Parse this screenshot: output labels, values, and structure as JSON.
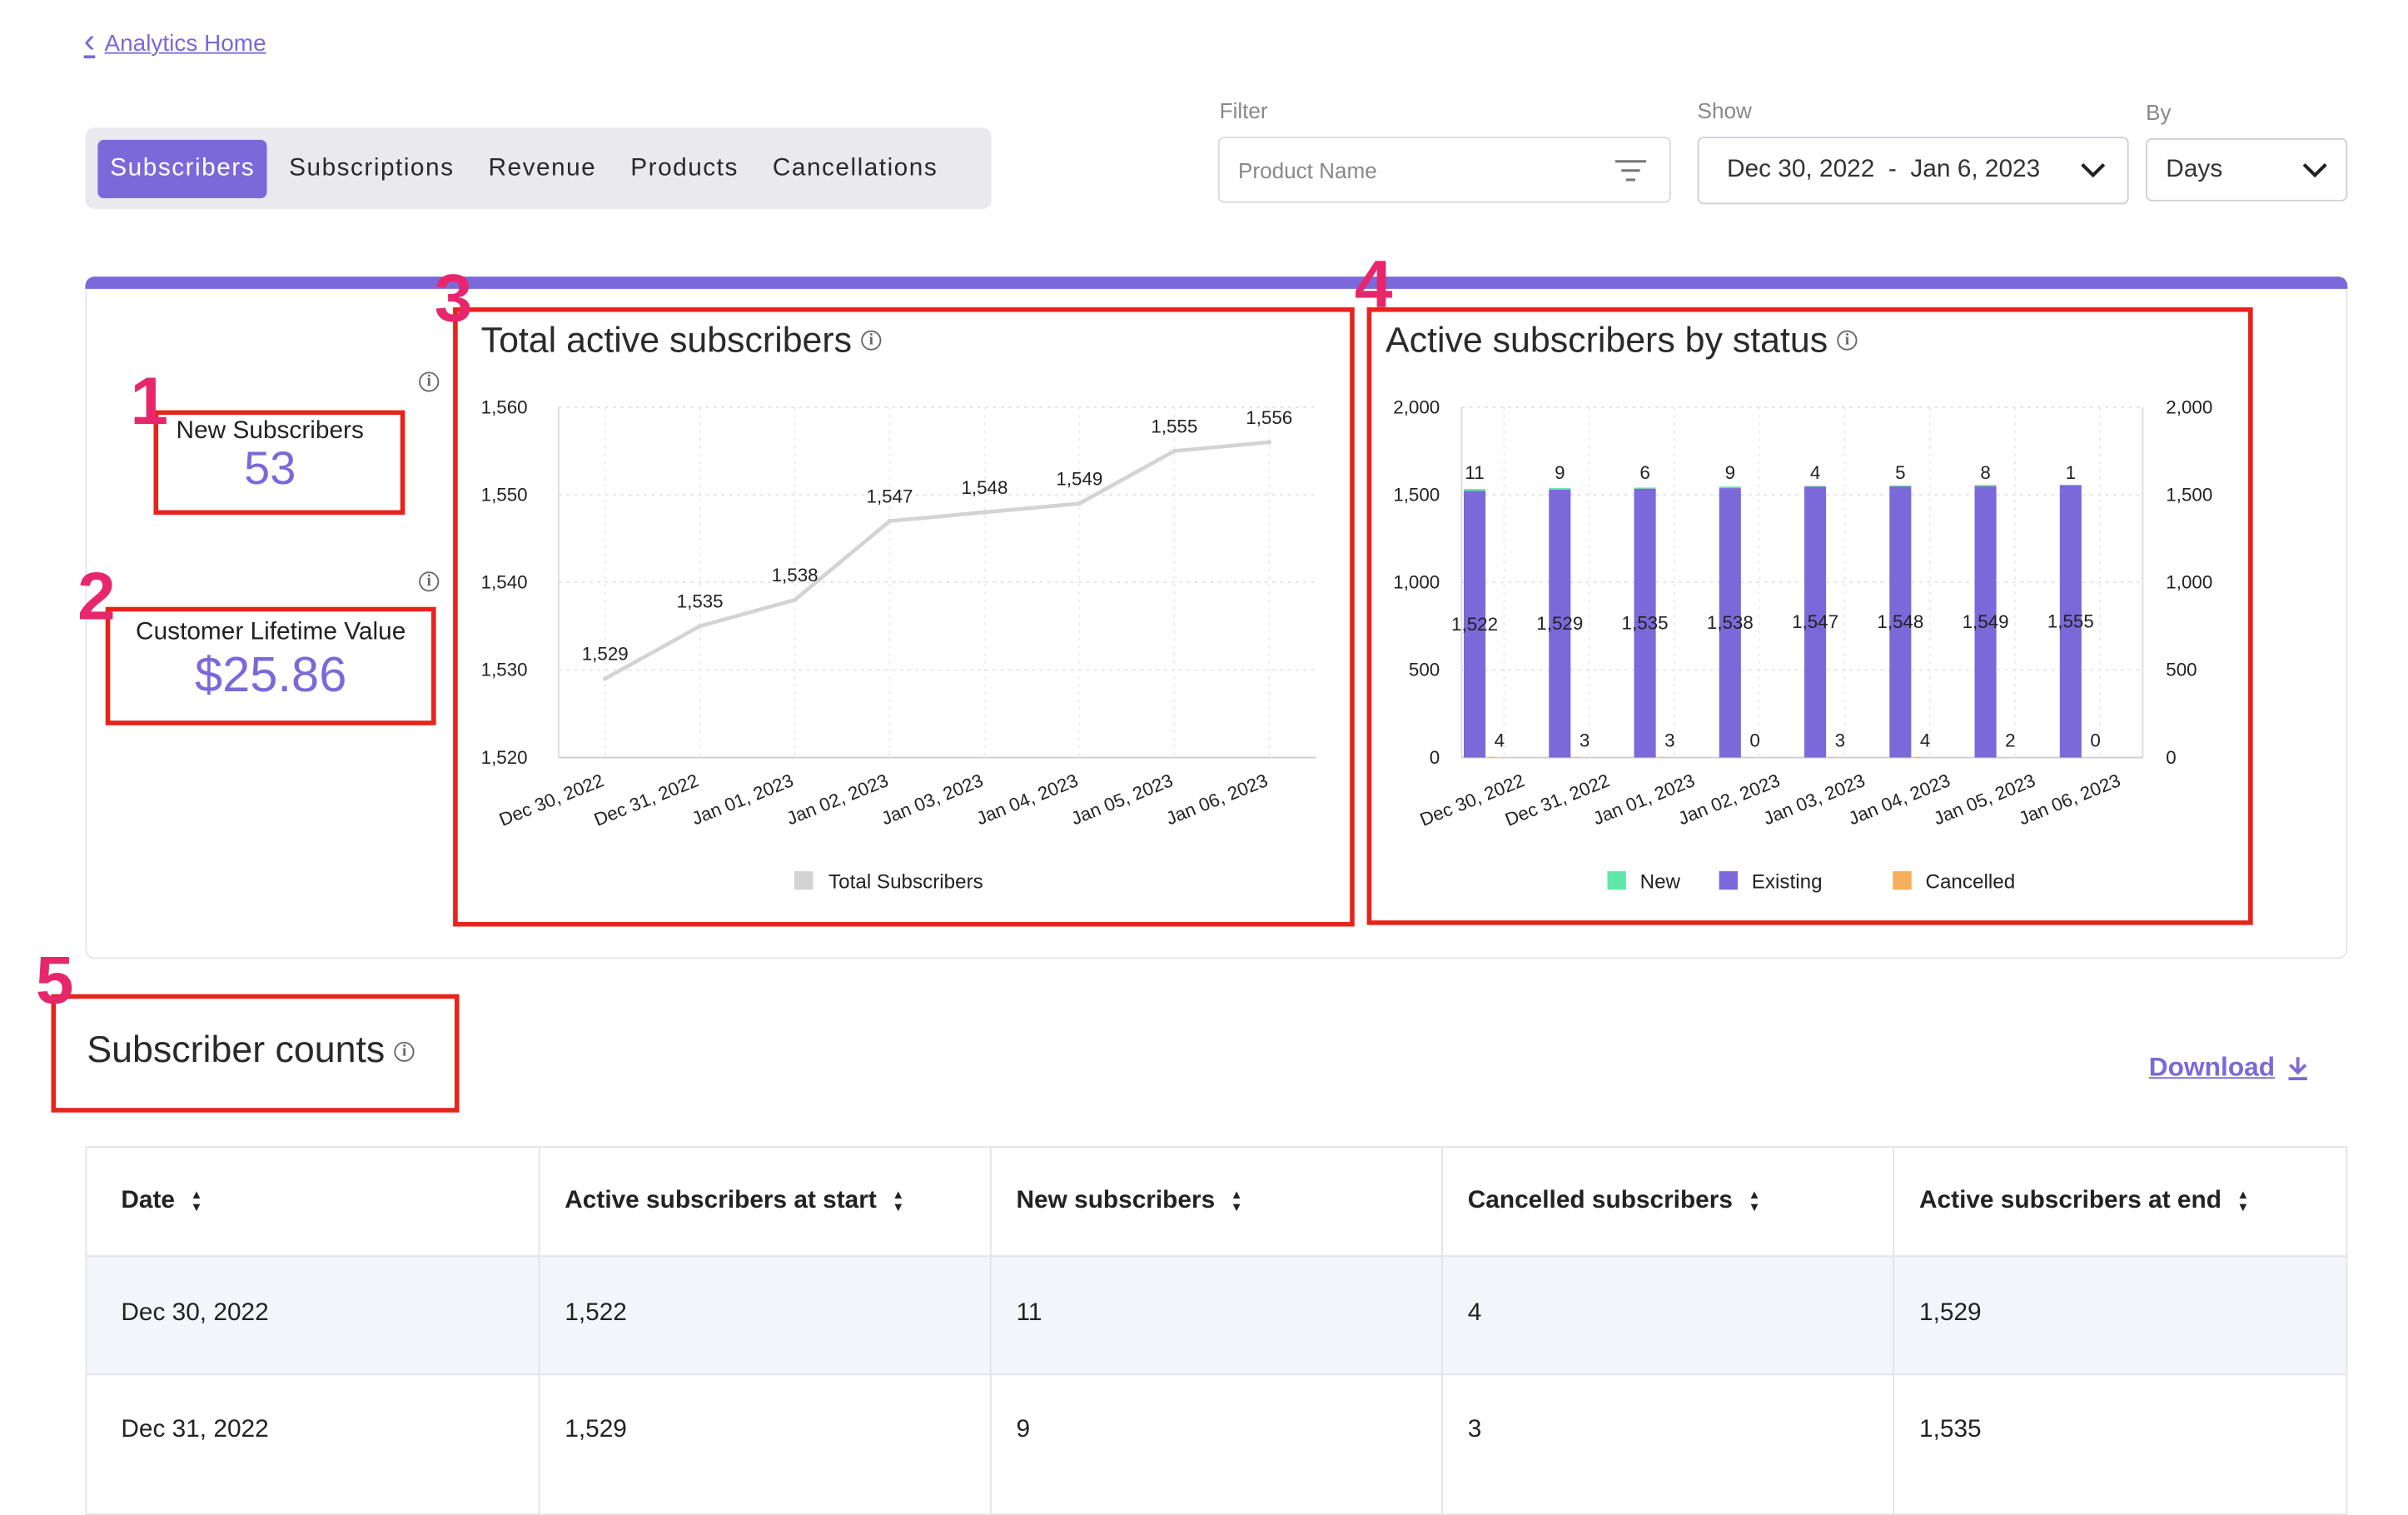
{
  "nav": {
    "back_label": "Analytics Home"
  },
  "tabs": [
    {
      "label": "Subscribers",
      "active": true
    },
    {
      "label": "Subscriptions",
      "active": false
    },
    {
      "label": "Revenue",
      "active": false
    },
    {
      "label": "Products",
      "active": false
    },
    {
      "label": "Cancellations",
      "active": false
    }
  ],
  "filter": {
    "label": "Filter",
    "placeholder": "Product Name",
    "icon": "filter-lines-icon"
  },
  "show": {
    "label": "Show",
    "value": "Dec 30, 2022  -  Jan 6, 2023",
    "icon": "chevron-down-icon"
  },
  "by": {
    "label": "By",
    "value": "Days",
    "icon": "chevron-down-icon"
  },
  "annotations": [
    "1",
    "2",
    "3",
    "4",
    "5"
  ],
  "metrics": {
    "new_subscribers": {
      "label": "New Subscribers",
      "value": "53"
    },
    "clv": {
      "label": "Customer Lifetime Value",
      "value": "$25.86"
    }
  },
  "accent_color": "#7b69d9",
  "annotation_color": "#e8231b",
  "chart_data": [
    {
      "type": "line",
      "title": "Total active subscribers",
      "categories": [
        "Dec 30, 2022",
        "Dec 31, 2022",
        "Jan 01, 2023",
        "Jan 02, 2023",
        "Jan 03, 2023",
        "Jan 04, 2023",
        "Jan 05, 2023",
        "Jan 06, 2023"
      ],
      "series": [
        {
          "name": "Total Subscribers",
          "values": [
            1529,
            1535,
            1538,
            1547,
            1548,
            1549,
            1555,
            1556
          ],
          "color": "#d3d3d3"
        }
      ],
      "ylim": [
        1520,
        1560
      ],
      "yticks": [
        "1,560",
        "1,550",
        "1,540",
        "1,530",
        "1,520"
      ],
      "grid": true,
      "legend": "bottom"
    },
    {
      "type": "bar",
      "title": "Active subscribers by status",
      "categories": [
        "Dec 30, 2022",
        "Dec 31, 2022",
        "Jan 01, 2023",
        "Jan 02, 2023",
        "Jan 03, 2023",
        "Jan 04, 2023",
        "Jan 05, 2023",
        "Jan 06, 2023"
      ],
      "series": [
        {
          "name": "New",
          "values": [
            11,
            9,
            6,
            9,
            4,
            5,
            8,
            1
          ],
          "color": "#5ee8a8"
        },
        {
          "name": "Existing",
          "values": [
            1522,
            1529,
            1535,
            1538,
            1547,
            1548,
            1549,
            1555
          ],
          "color": "#7b69d9"
        },
        {
          "name": "Cancelled",
          "values": [
            4,
            3,
            3,
            0,
            3,
            4,
            2,
            0
          ],
          "color": "#f6ae5a"
        }
      ],
      "ylim": [
        0,
        2000
      ],
      "yticks": [
        "2,000",
        "1,500",
        "1,000",
        "500",
        "0"
      ],
      "y2ticks": [
        "2,000",
        "1,500",
        "1,000",
        "500",
        "0"
      ],
      "grid": true,
      "legend": "bottom"
    }
  ],
  "counts": {
    "title": "Subscriber counts",
    "download_label": "Download",
    "columns": [
      "Date",
      "Active subscribers at start",
      "New subscribers",
      "Cancelled subscribers",
      "Active subscribers at end"
    ],
    "rows": [
      [
        "Dec 30, 2022",
        "1,522",
        "11",
        "4",
        "1,529"
      ],
      [
        "Dec 31, 2022",
        "1,529",
        "9",
        "3",
        "1,535"
      ]
    ]
  }
}
